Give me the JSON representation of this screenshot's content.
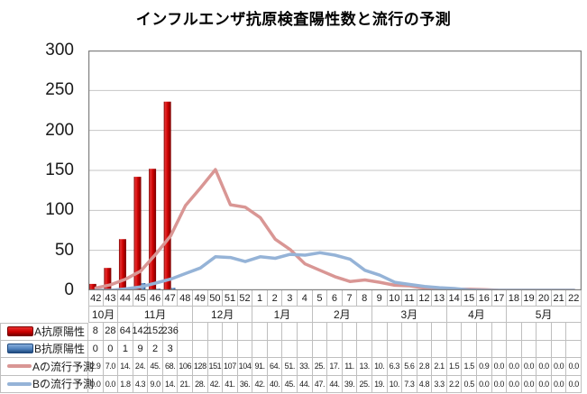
{
  "title": "インフルエンザ抗原検査陽性数と流行の予測",
  "colors": {
    "bar_a": "#CC0000",
    "bar_a_light": "#E83030",
    "bar_a_dark": "#7A0000",
    "bar_b": "#4F81BD",
    "bar_b_light": "#87AEDB",
    "bar_b_dark": "#1F497D",
    "line_a": "#D99694",
    "line_b": "#95B3D7",
    "gridline": "#C6C6C6",
    "plot_border": "#808080",
    "table_border": "#BFBFBF"
  },
  "y_axis": {
    "ticks": [
      "300",
      "250",
      "200",
      "150",
      "100",
      "50",
      "0"
    ],
    "max": 300,
    "min": 0
  },
  "x_axis": {
    "weeks": [
      "42",
      "43",
      "44",
      "45",
      "46",
      "47",
      "48",
      "49",
      "50",
      "51",
      "52",
      "1",
      "2",
      "3",
      "4",
      "5",
      "6",
      "7",
      "8",
      "9",
      "10",
      "11",
      "12",
      "13",
      "14",
      "15",
      "16",
      "17",
      "18",
      "19",
      "20",
      "21",
      "22"
    ],
    "months": [
      {
        "label": "10月",
        "span": 2
      },
      {
        "label": "11月",
        "span": 5
      },
      {
        "label": "12月",
        "span": 4
      },
      {
        "label": "1月",
        "span": 4
      },
      {
        "label": "2月",
        "span": 4
      },
      {
        "label": "3月",
        "span": 5
      },
      {
        "label": "4月",
        "span": 4
      },
      {
        "label": "5月",
        "span": 5
      }
    ]
  },
  "table": {
    "rows": [
      {
        "key": "a-antigen",
        "kind": "bar",
        "label": "A抗原陽性",
        "values": [
          "8",
          "28",
          "64",
          "142",
          "152",
          "236",
          "",
          "",
          "",
          "",
          "",
          "",
          "",
          "",
          "",
          "",
          "",
          "",
          "",
          "",
          "",
          "",
          "",
          "",
          "",
          "",
          "",
          "",
          "",
          "",
          "",
          "",
          ""
        ]
      },
      {
        "key": "b-antigen",
        "kind": "bar",
        "label": "B抗原陽性",
        "values": [
          "0",
          "0",
          "1",
          "9",
          "2",
          "3",
          "",
          "",
          "",
          "",
          "",
          "",
          "",
          "",
          "",
          "",
          "",
          "",
          "",
          "",
          "",
          "",
          "",
          "",
          "",
          "",
          "",
          "",
          "",
          "",
          "",
          "",
          ""
        ]
      },
      {
        "key": "a-forecast",
        "kind": "line",
        "label": "Aの流行予測",
        "values": [
          "2.9",
          "7.0",
          "14.",
          "24.",
          "45.",
          "68.",
          "106",
          "128",
          "151",
          "107",
          "104",
          "91.",
          "64.",
          "51.",
          "33.",
          "25.",
          "17.",
          "11.",
          "13.",
          "10.",
          "6.3",
          "5.6",
          "2.8",
          "2.1",
          "1.5",
          "1.5",
          "0.9",
          "0.0",
          "0.0",
          "0.0",
          "0.0",
          "0.0",
          "0.0"
        ]
      },
      {
        "key": "b-forecast",
        "kind": "line",
        "label": "Bの流行予測",
        "values": [
          "0.0",
          "0.0",
          "1.8",
          "4.3",
          "9.0",
          "14.",
          "21.",
          "28.",
          "42.",
          "41.",
          "36.",
          "42.",
          "40.",
          "45.",
          "44.",
          "47.",
          "44.",
          "39.",
          "25.",
          "19.",
          "10.",
          "7.3",
          "4.8",
          "3.3",
          "2.2",
          "0.5",
          "0.0",
          "0.0",
          "0.0",
          "0.0",
          "0.0",
          "0.0",
          "0.0"
        ]
      }
    ]
  },
  "chart_data": {
    "type": "bar",
    "title": "インフルエンザ抗原検査陽性数と流行の予測",
    "xlabel": "",
    "ylabel": "",
    "ylim": [
      0,
      300
    ],
    "grid": true,
    "legend_position": "data-table-left",
    "categories": [
      "42",
      "43",
      "44",
      "45",
      "46",
      "47",
      "48",
      "49",
      "50",
      "51",
      "52",
      "1",
      "2",
      "3",
      "4",
      "5",
      "6",
      "7",
      "8",
      "9",
      "10",
      "11",
      "12",
      "13",
      "14",
      "15",
      "16",
      "17",
      "18",
      "19",
      "20",
      "21",
      "22"
    ],
    "series": [
      {
        "name": "A抗原陽性",
        "type": "bar",
        "color": "#CC0000",
        "values": [
          8,
          28,
          64,
          142,
          152,
          236,
          null,
          null,
          null,
          null,
          null,
          null,
          null,
          null,
          null,
          null,
          null,
          null,
          null,
          null,
          null,
          null,
          null,
          null,
          null,
          null,
          null,
          null,
          null,
          null,
          null,
          null,
          null
        ]
      },
      {
        "name": "B抗原陽性",
        "type": "bar",
        "color": "#4F81BD",
        "values": [
          0,
          0,
          1,
          9,
          2,
          3,
          null,
          null,
          null,
          null,
          null,
          null,
          null,
          null,
          null,
          null,
          null,
          null,
          null,
          null,
          null,
          null,
          null,
          null,
          null,
          null,
          null,
          null,
          null,
          null,
          null,
          null,
          null
        ]
      },
      {
        "name": "Aの流行予測",
        "type": "line",
        "color": "#D99694",
        "values": [
          2.9,
          7.0,
          14,
          24,
          45,
          68,
          106,
          128,
          151,
          107,
          104,
          91,
          64,
          51,
          33,
          25,
          17,
          11,
          13,
          10,
          6.3,
          5.6,
          2.8,
          2.1,
          1.5,
          1.5,
          0.9,
          0,
          0,
          0,
          0,
          0,
          0
        ]
      },
      {
        "name": "Bの流行予測",
        "type": "line",
        "color": "#95B3D7",
        "values": [
          0,
          0,
          1.8,
          4.3,
          9.0,
          14,
          21,
          28,
          42,
          41,
          36,
          42,
          40,
          45,
          44,
          47,
          44,
          39,
          25,
          19,
          10,
          7.3,
          4.8,
          3.3,
          2.2,
          0.5,
          0,
          0,
          0,
          0,
          0,
          0,
          0
        ]
      }
    ]
  }
}
